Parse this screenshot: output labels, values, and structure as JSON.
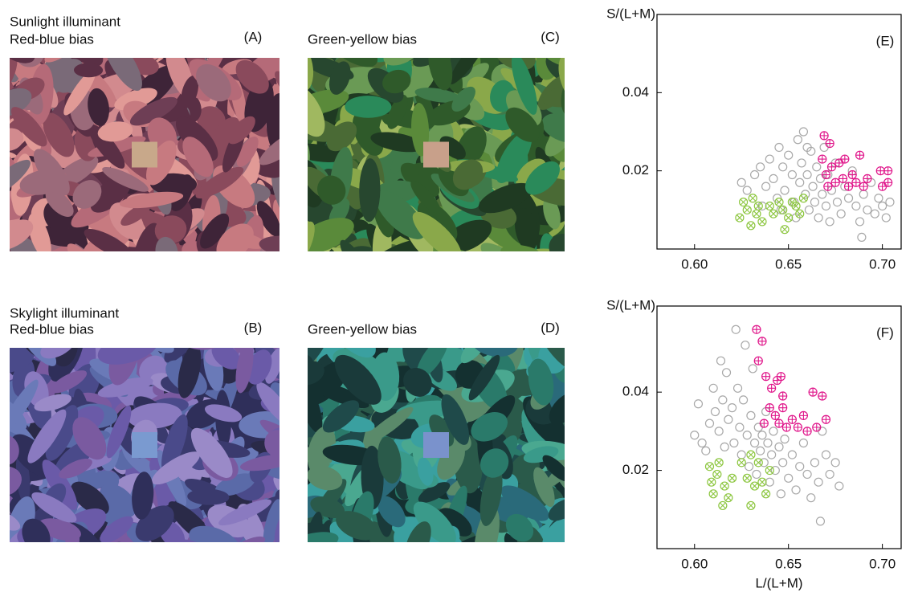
{
  "panels": [
    {
      "title": [
        "Sunlight illuminant",
        "Red-blue bias"
      ],
      "label": "(A)"
    },
    {
      "title": [
        "Green-yellow bias"
      ],
      "label": "(C)"
    },
    {
      "title": [
        "Skylight illuminant",
        "Red-blue bias"
      ],
      "label": "(B)"
    },
    {
      "title": [
        "Green-yellow bias"
      ],
      "label": "(D)"
    }
  ],
  "chart_data": [
    {
      "type": "scatter",
      "panel_label": "(E)",
      "ylabel": "S/(L+M)",
      "xlim": [
        0.58,
        0.71
      ],
      "ylim": [
        0,
        0.06
      ],
      "xticks": [
        {
          "value": 0.6,
          "label": "0.60"
        },
        {
          "value": 0.65,
          "label": "0.65"
        },
        {
          "value": 0.7,
          "label": "0.70"
        }
      ],
      "yticks": [
        0.02,
        0.04
      ],
      "series": [
        {
          "color": "#a8a8a8",
          "marker": "circle",
          "x": [
            0.625,
            0.628,
            0.632,
            0.635,
            0.638,
            0.64,
            0.642,
            0.645,
            0.647,
            0.648,
            0.65,
            0.652,
            0.653,
            0.655,
            0.656,
            0.657,
            0.658,
            0.659,
            0.66,
            0.661,
            0.662,
            0.663,
            0.664,
            0.665,
            0.666,
            0.667,
            0.668,
            0.669,
            0.67,
            0.671,
            0.672,
            0.673,
            0.675,
            0.676,
            0.678,
            0.68,
            0.682,
            0.684,
            0.686,
            0.688,
            0.689,
            0.69,
            0.692,
            0.694,
            0.696,
            0.698,
            0.7,
            0.702,
            0.704,
            0.646,
            0.644,
            0.66,
            0.654,
            0.636
          ],
          "y": [
            0.017,
            0.015,
            0.019,
            0.021,
            0.016,
            0.023,
            0.018,
            0.026,
            0.021,
            0.015,
            0.024,
            0.019,
            0.012,
            0.028,
            0.017,
            0.022,
            0.03,
            0.014,
            0.019,
            0.01,
            0.025,
            0.016,
            0.012,
            0.021,
            0.008,
            0.018,
            0.014,
            0.026,
            0.011,
            0.019,
            0.007,
            0.015,
            0.022,
            0.012,
            0.009,
            0.016,
            0.013,
            0.02,
            0.011,
            0.007,
            0.003,
            0.014,
            0.01,
            0.017,
            0.009,
            0.013,
            0.011,
            0.008,
            0.012,
            0.01,
            0.013,
            0.026,
            0.008,
            0.011
          ]
        },
        {
          "color": "#8cc63f",
          "marker": "circle-x",
          "x": [
            0.624,
            0.626,
            0.628,
            0.63,
            0.631,
            0.633,
            0.634,
            0.636,
            0.64,
            0.642,
            0.645,
            0.647,
            0.65,
            0.652,
            0.654,
            0.656,
            0.658,
            0.648
          ],
          "y": [
            0.008,
            0.012,
            0.01,
            0.006,
            0.013,
            0.009,
            0.011,
            0.007,
            0.011,
            0.009,
            0.012,
            0.01,
            0.008,
            0.012,
            0.011,
            0.009,
            0.013,
            0.005
          ]
        },
        {
          "color": "#e0158a",
          "marker": "circle-plus",
          "x": [
            0.669,
            0.672,
            0.668,
            0.67,
            0.673,
            0.675,
            0.677,
            0.679,
            0.68,
            0.682,
            0.684,
            0.686,
            0.688,
            0.69,
            0.692,
            0.699,
            0.703,
            0.7,
            0.703,
            0.671
          ],
          "y": [
            0.029,
            0.027,
            0.023,
            0.019,
            0.021,
            0.017,
            0.022,
            0.018,
            0.023,
            0.016,
            0.019,
            0.017,
            0.024,
            0.016,
            0.018,
            0.02,
            0.02,
            0.016,
            0.017,
            0.016
          ]
        }
      ]
    },
    {
      "type": "scatter",
      "panel_label": "(F)",
      "ylabel": "S/(L+M)",
      "xlabel": "L/(L+M)",
      "xlim": [
        0.58,
        0.71
      ],
      "ylim": [
        0,
        0.062
      ],
      "xticks": [
        {
          "value": 0.6,
          "label": "0.60"
        },
        {
          "value": 0.65,
          "label": "0.65"
        },
        {
          "value": 0.7,
          "label": "0.70"
        }
      ],
      "yticks": [
        0.02,
        0.04
      ],
      "series": [
        {
          "color": "#a8a8a8",
          "marker": "circle",
          "x": [
            0.6,
            0.602,
            0.604,
            0.606,
            0.608,
            0.61,
            0.611,
            0.613,
            0.614,
            0.615,
            0.616,
            0.617,
            0.618,
            0.62,
            0.621,
            0.622,
            0.623,
            0.624,
            0.625,
            0.626,
            0.627,
            0.628,
            0.629,
            0.63,
            0.631,
            0.632,
            0.633,
            0.634,
            0.635,
            0.636,
            0.637,
            0.638,
            0.639,
            0.64,
            0.641,
            0.642,
            0.643,
            0.645,
            0.646,
            0.647,
            0.648,
            0.65,
            0.652,
            0.654,
            0.656,
            0.658,
            0.66,
            0.662,
            0.664,
            0.666,
            0.667,
            0.67,
            0.672,
            0.675,
            0.677,
            0.668
          ],
          "y": [
            0.029,
            0.037,
            0.027,
            0.025,
            0.032,
            0.041,
            0.035,
            0.03,
            0.048,
            0.038,
            0.026,
            0.045,
            0.033,
            0.036,
            0.027,
            0.056,
            0.041,
            0.031,
            0.024,
            0.038,
            0.052,
            0.029,
            0.021,
            0.034,
            0.046,
            0.027,
            0.019,
            0.031,
            0.025,
            0.029,
            0.022,
            0.035,
            0.027,
            0.017,
            0.024,
            0.03,
            0.02,
            0.026,
            0.014,
            0.022,
            0.028,
            0.018,
            0.024,
            0.015,
            0.021,
            0.027,
            0.019,
            0.013,
            0.022,
            0.017,
            0.007,
            0.024,
            0.019,
            0.022,
            0.016,
            0.03
          ]
        },
        {
          "color": "#8cc63f",
          "marker": "circle-x",
          "x": [
            0.608,
            0.609,
            0.61,
            0.612,
            0.613,
            0.615,
            0.616,
            0.618,
            0.62,
            0.625,
            0.628,
            0.63,
            0.632,
            0.634,
            0.636,
            0.638,
            0.64,
            0.63
          ],
          "y": [
            0.021,
            0.017,
            0.014,
            0.019,
            0.022,
            0.011,
            0.016,
            0.013,
            0.018,
            0.022,
            0.018,
            0.024,
            0.016,
            0.022,
            0.017,
            0.014,
            0.02,
            0.011
          ]
        },
        {
          "color": "#e0158a",
          "marker": "circle-plus",
          "x": [
            0.633,
            0.636,
            0.634,
            0.638,
            0.641,
            0.644,
            0.646,
            0.64,
            0.647,
            0.643,
            0.645,
            0.649,
            0.652,
            0.655,
            0.658,
            0.66,
            0.663,
            0.668,
            0.665,
            0.67,
            0.637,
            0.647
          ],
          "y": [
            0.056,
            0.053,
            0.048,
            0.044,
            0.041,
            0.043,
            0.044,
            0.036,
            0.039,
            0.034,
            0.032,
            0.031,
            0.033,
            0.031,
            0.034,
            0.03,
            0.04,
            0.039,
            0.031,
            0.033,
            0.032,
            0.036
          ]
        }
      ]
    }
  ]
}
